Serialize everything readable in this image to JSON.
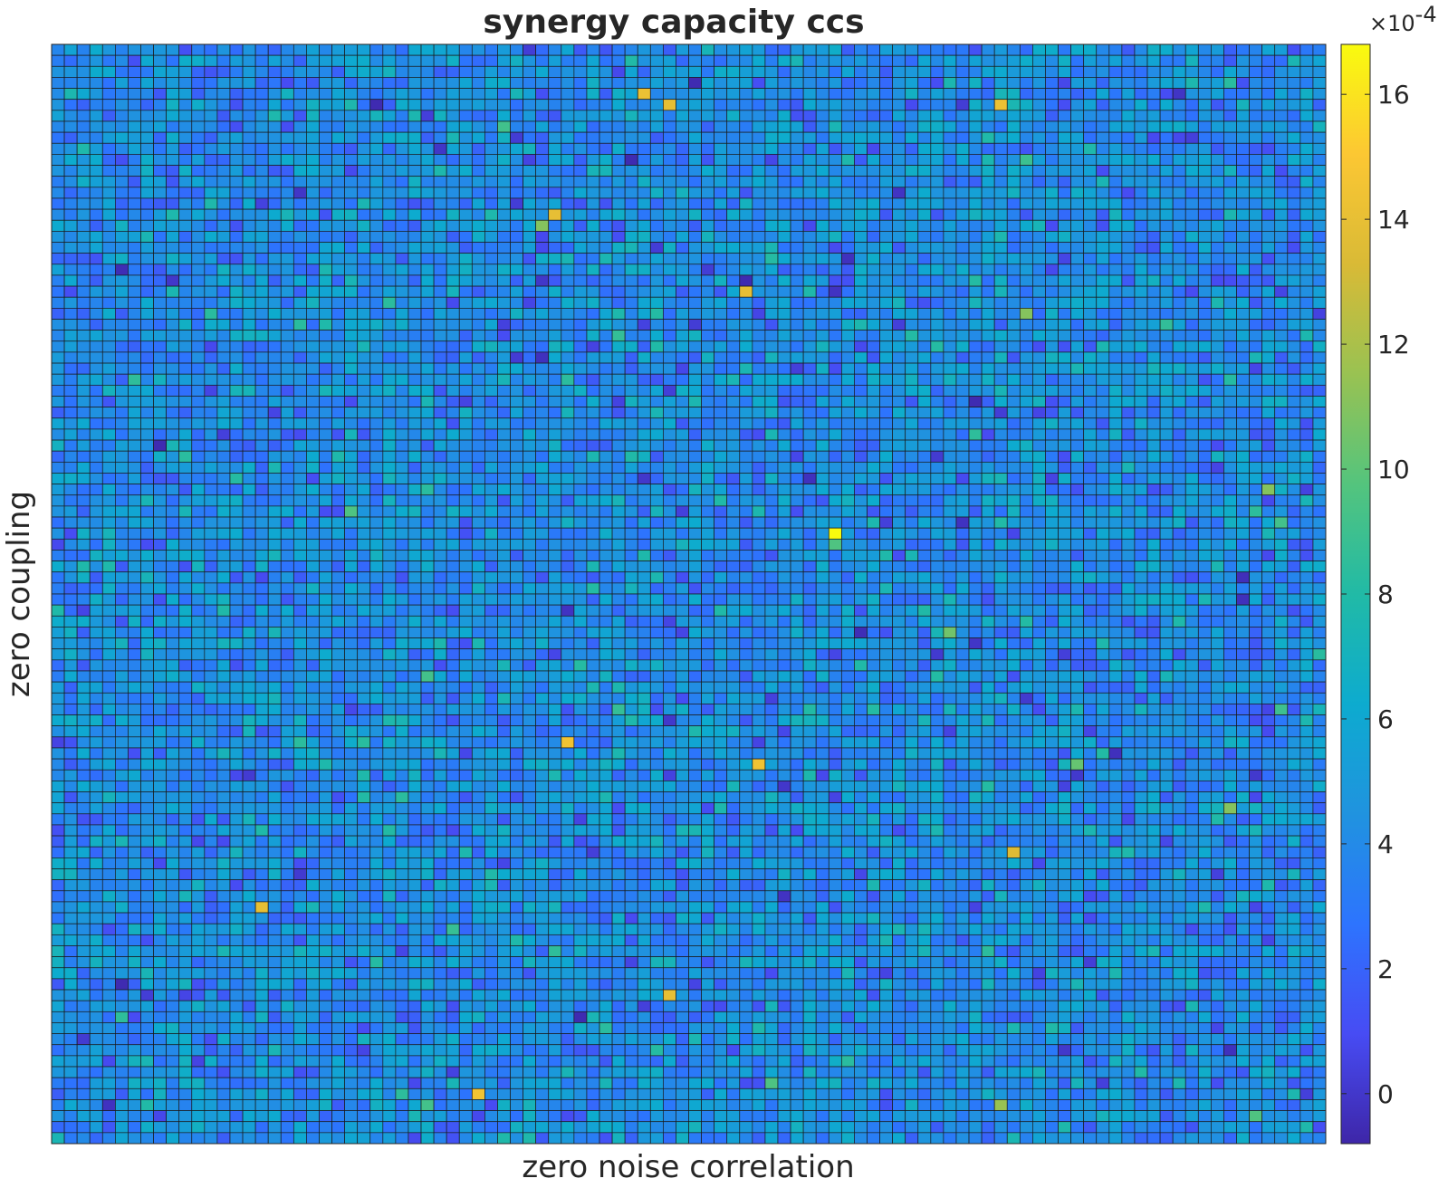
{
  "chart_data": {
    "type": "heatmap",
    "title": "synergy capacity ccs",
    "xlabel": "zero noise correlation",
    "ylabel": "zero coupling",
    "rows": 100,
    "cols": 100,
    "colormap": "parula",
    "clim": [
      -0.8,
      16.8
    ],
    "value_scale_exponent": -4,
    "colorbar": {
      "exponent_label": "×10",
      "exponent_value": "-4",
      "ticks": [
        {
          "value": 0,
          "label": "0"
        },
        {
          "value": 2,
          "label": "2"
        },
        {
          "value": 4,
          "label": "4"
        },
        {
          "value": 6,
          "label": "6"
        },
        {
          "value": 8,
          "label": "8"
        },
        {
          "value": 10,
          "label": "10"
        },
        {
          "value": 12,
          "label": "12"
        },
        {
          "value": 14,
          "label": "14"
        },
        {
          "value": 16,
          "label": "16"
        }
      ]
    },
    "background_distribution": {
      "mean": 4.2,
      "std": 1.5
    },
    "highlighted_cells": [
      {
        "row": 44,
        "col": 61,
        "value": 16.8
      },
      {
        "row": 4,
        "col": 46,
        "value": 14.2
      },
      {
        "row": 15,
        "col": 39,
        "value": 14.0
      },
      {
        "row": 22,
        "col": 54,
        "value": 14.0
      },
      {
        "row": 5,
        "col": 48,
        "value": 14.0
      },
      {
        "row": 5,
        "col": 74,
        "value": 14.2
      },
      {
        "row": 63,
        "col": 40,
        "value": 14.5
      },
      {
        "row": 65,
        "col": 55,
        "value": 14.5
      },
      {
        "row": 73,
        "col": 75,
        "value": 13.5
      },
      {
        "row": 78,
        "col": 16,
        "value": 14.0
      },
      {
        "row": 86,
        "col": 48,
        "value": 14.0
      },
      {
        "row": 95,
        "col": 33,
        "value": 14.5
      },
      {
        "row": 16,
        "col": 38,
        "value": 11.0
      },
      {
        "row": 4,
        "col": 46,
        "value": 14.2
      },
      {
        "row": 24,
        "col": 76,
        "value": 11.0
      },
      {
        "row": 40,
        "col": 95,
        "value": 11.0
      },
      {
        "row": 53,
        "col": 70,
        "value": 10.5
      },
      {
        "row": 96,
        "col": 74,
        "value": 11.5
      },
      {
        "row": 69,
        "col": 92,
        "value": 11.0
      }
    ]
  }
}
